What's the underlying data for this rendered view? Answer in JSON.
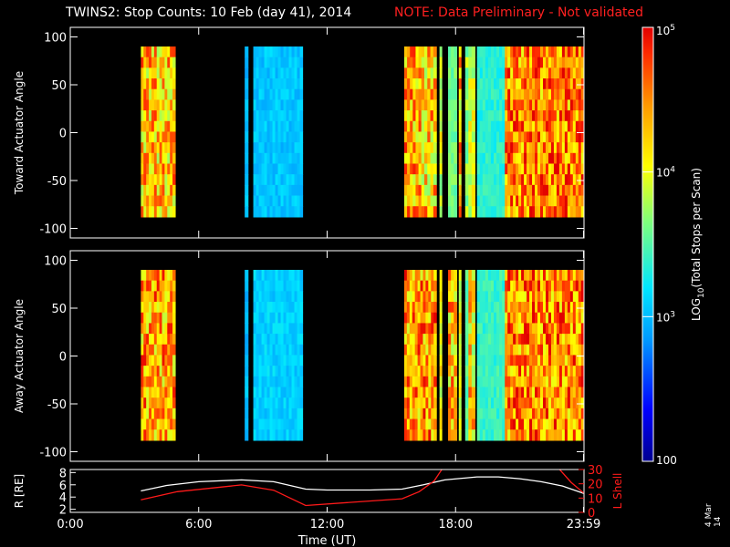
{
  "title": "TWINS2: Stop Counts: 10 Feb (day  41), 2014",
  "note": "NOTE: Data Preliminary - Not validated",
  "side_date": "4 Mar 14",
  "colors": {
    "background": "#000000",
    "axis": "#ffffff",
    "note": "#ff2020",
    "lshell": "#ff1a1a",
    "radius": "#ffffff"
  },
  "colorbar": {
    "label": "LOG10(Total Stops per Scan)",
    "scale": "log",
    "range": [
      100,
      100000
    ],
    "ticks": [
      {
        "value": 100000,
        "label": "10^5"
      },
      {
        "value": 10000,
        "label": "10^4"
      },
      {
        "value": 1000,
        "label": "10^3"
      },
      {
        "value": 100,
        "label": "100"
      }
    ]
  },
  "chart_data": [
    {
      "type": "heatmap",
      "id": "toward",
      "ylabel": "Toward Actuator Angle",
      "ylim": [
        -110,
        110
      ],
      "yticks": [
        -100,
        -50,
        0,
        50,
        100
      ],
      "xlim_hours": [
        0,
        24
      ],
      "data_angle_range": [
        -88,
        90
      ],
      "blocks": [
        {
          "start": 3.3,
          "end": 4.9,
          "level": 4.3
        },
        {
          "start": 8.15,
          "end": 8.3,
          "level": 3.0
        },
        {
          "start": 8.55,
          "end": 10.85,
          "level": 3.05
        },
        {
          "start": 15.6,
          "end": 16.4,
          "level": 4.35
        },
        {
          "start": 16.4,
          "end": 17.1,
          "level": 4.25
        },
        {
          "start": 17.25,
          "end": 17.35,
          "level": 3.9
        },
        {
          "start": 17.65,
          "end": 18.05,
          "level": 3.6
        },
        {
          "start": 18.15,
          "end": 18.25,
          "level": 4.3
        },
        {
          "start": 18.45,
          "end": 18.6,
          "level": 3.7
        },
        {
          "start": 18.6,
          "end": 18.9,
          "level": 3.95
        },
        {
          "start": 19.0,
          "end": 20.3,
          "level": 3.35
        },
        {
          "start": 20.3,
          "end": 23.99,
          "level": 4.5
        }
      ]
    },
    {
      "type": "heatmap",
      "id": "away",
      "ylabel": "Away Actuator Angle",
      "ylim": [
        -110,
        110
      ],
      "yticks": [
        -100,
        -50,
        0,
        50,
        100
      ],
      "xlim_hours": [
        0,
        24
      ],
      "data_angle_range": [
        -88,
        90
      ],
      "blocks": [
        {
          "start": 3.3,
          "end": 4.9,
          "level": 4.4
        },
        {
          "start": 8.15,
          "end": 8.3,
          "level": 3.0
        },
        {
          "start": 8.55,
          "end": 10.85,
          "level": 3.1
        },
        {
          "start": 15.6,
          "end": 17.1,
          "level": 4.45
        },
        {
          "start": 17.25,
          "end": 17.35,
          "level": 4.0
        },
        {
          "start": 17.65,
          "end": 18.05,
          "level": 4.3
        },
        {
          "start": 18.15,
          "end": 18.25,
          "level": 4.0
        },
        {
          "start": 18.45,
          "end": 18.6,
          "level": 3.5
        },
        {
          "start": 18.6,
          "end": 18.9,
          "level": 4.2
        },
        {
          "start": 19.0,
          "end": 20.3,
          "level": 3.4
        },
        {
          "start": 20.3,
          "end": 23.99,
          "level": 4.5
        }
      ]
    },
    {
      "type": "line",
      "id": "orbit",
      "ylabel_left": "R [RE]",
      "ylabel_right": "L Shell",
      "ylim_left": [
        1.5,
        8.5
      ],
      "ylim_right": [
        0,
        30
      ],
      "yticks_left": [
        2,
        4,
        6,
        8
      ],
      "yticks_right": [
        0,
        10,
        20,
        30
      ],
      "series": [
        {
          "axis": "left",
          "color": "#ffffff",
          "x": [
            3.3,
            4.5,
            6,
            8,
            9.5,
            11,
            12,
            14,
            15.5,
            16.5,
            17.5,
            19,
            20,
            21,
            22,
            23,
            23.99
          ],
          "y": [
            5.0,
            5.9,
            6.5,
            6.8,
            6.5,
            5.3,
            5.15,
            5.15,
            5.3,
            6.0,
            6.8,
            7.3,
            7.3,
            7.0,
            6.5,
            5.8,
            4.6
          ]
        },
        {
          "axis": "right",
          "color": "#ff1a1a",
          "x": [
            3.3,
            5,
            8,
            9.5,
            11,
            15.5,
            16.3,
            17,
            17.4,
            null,
            22.8,
            23.4,
            23.99
          ],
          "y": [
            8.8,
            14.5,
            19.2,
            15.5,
            4.8,
            9.5,
            14.5,
            22,
            31,
            null,
            31,
            21,
            13.5
          ]
        }
      ]
    }
  ],
  "xaxis": {
    "label": "Time (UT)",
    "ticks": [
      {
        "value": 0,
        "label": "0:00"
      },
      {
        "value": 6,
        "label": "6:00"
      },
      {
        "value": 12,
        "label": "12:00"
      },
      {
        "value": 18,
        "label": "18:00"
      },
      {
        "value": 23.98,
        "label": "23:59"
      }
    ]
  }
}
